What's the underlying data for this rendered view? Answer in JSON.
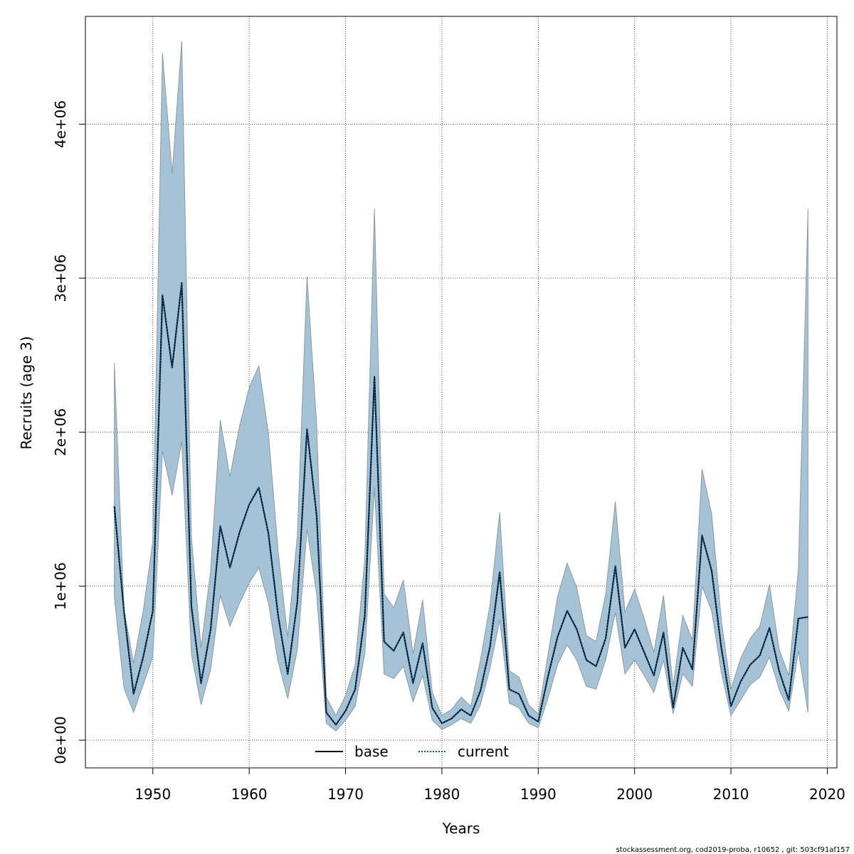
{
  "chart_data": {
    "type": "line",
    "title": "",
    "xlabel": "Years",
    "ylabel": "Recruits (age 3)",
    "xlim": [
      1943,
      2021
    ],
    "ylim": [
      -180000,
      4700000
    ],
    "x_ticks": [
      1950,
      1960,
      1970,
      1980,
      1990,
      2000,
      2010,
      2020
    ],
    "x_tick_labels": [
      "1950",
      "1960",
      "1970",
      "1980",
      "1990",
      "2000",
      "2010",
      "2020"
    ],
    "y_ticks": [
      0,
      1000000,
      2000000,
      3000000,
      4000000
    ],
    "y_tick_labels": [
      "0e+00",
      "1e+06",
      "2e+06",
      "3e+06",
      "4e+06"
    ],
    "grid": true,
    "legend_position": "bottom",
    "x": [
      1946,
      1947,
      1948,
      1949,
      1950,
      1951,
      1952,
      1953,
      1954,
      1955,
      1956,
      1957,
      1958,
      1959,
      1960,
      1961,
      1962,
      1963,
      1964,
      1965,
      1966,
      1967,
      1968,
      1969,
      1970,
      1971,
      1972,
      1973,
      1974,
      1975,
      1976,
      1977,
      1978,
      1979,
      1980,
      1981,
      1982,
      1983,
      1984,
      1985,
      1986,
      1987,
      1988,
      1989,
      1990,
      1991,
      1992,
      1993,
      1994,
      1995,
      1996,
      1997,
      1998,
      1999,
      2000,
      2001,
      2002,
      2003,
      2004,
      2005,
      2006,
      2007,
      2008,
      2009,
      2010,
      2011,
      2012,
      2013,
      2014,
      2015,
      2016,
      2017,
      2018
    ],
    "series": [
      {
        "name": "base",
        "style": "solid",
        "color": "#000000",
        "values": [
          1520000,
          840000,
          300000,
          540000,
          840000,
          2890000,
          2420000,
          2970000,
          870000,
          370000,
          720000,
          1390000,
          1120000,
          1350000,
          1530000,
          1640000,
          1340000,
          810000,
          430000,
          900000,
          2020000,
          1460000,
          180000,
          100000,
          190000,
          330000,
          810000,
          2360000,
          640000,
          580000,
          700000,
          370000,
          630000,
          210000,
          110000,
          140000,
          200000,
          160000,
          320000,
          610000,
          1090000,
          330000,
          300000,
          160000,
          120000,
          410000,
          670000,
          840000,
          720000,
          520000,
          480000,
          660000,
          1130000,
          600000,
          720000,
          570000,
          420000,
          700000,
          210000,
          600000,
          460000,
          1330000,
          1100000,
          600000,
          220000,
          380000,
          490000,
          550000,
          730000,
          450000,
          260000,
          790000,
          800000
        ]
      },
      {
        "name": "current",
        "style": "dotted",
        "color": "#00568a",
        "values": [
          1520000,
          840000,
          300000,
          540000,
          840000,
          2890000,
          2420000,
          2970000,
          870000,
          370000,
          720000,
          1390000,
          1120000,
          1350000,
          1530000,
          1640000,
          1340000,
          810000,
          430000,
          900000,
          2020000,
          1460000,
          180000,
          100000,
          190000,
          330000,
          810000,
          2360000,
          640000,
          580000,
          700000,
          370000,
          630000,
          210000,
          110000,
          140000,
          200000,
          160000,
          320000,
          610000,
          1090000,
          330000,
          300000,
          160000,
          120000,
          410000,
          670000,
          840000,
          720000,
          520000,
          480000,
          660000,
          1130000,
          600000,
          720000,
          570000,
          420000,
          700000,
          210000,
          600000,
          460000,
          1330000,
          1100000,
          600000,
          220000,
          380000,
          490000,
          550000,
          730000,
          450000,
          260000,
          790000,
          800000
        ]
      }
    ],
    "confidence_band": {
      "color": "#a5c3d5",
      "lower": [
        930000,
        340000,
        180000,
        360000,
        540000,
        1880000,
        1590000,
        1940000,
        560000,
        230000,
        460000,
        940000,
        740000,
        890000,
        1020000,
        1120000,
        890000,
        510000,
        270000,
        590000,
        1370000,
        950000,
        110000,
        60000,
        130000,
        220000,
        560000,
        1640000,
        430000,
        400000,
        480000,
        250000,
        420000,
        130000,
        70000,
        100000,
        140000,
        110000,
        230000,
        470000,
        780000,
        240000,
        210000,
        110000,
        80000,
        270000,
        490000,
        620000,
        520000,
        350000,
        330000,
        520000,
        830000,
        430000,
        520000,
        420000,
        310000,
        520000,
        170000,
        430000,
        350000,
        1000000,
        840000,
        440000,
        160000,
        260000,
        360000,
        410000,
        540000,
        330000,
        190000,
        580000,
        180000
      ],
      "upper": [
        2450000,
        850000,
        500000,
        840000,
        1290000,
        4460000,
        3680000,
        4540000,
        1320000,
        600000,
        1100000,
        2080000,
        1710000,
        2040000,
        2290000,
        2430000,
        1990000,
        1230000,
        670000,
        1330000,
        3010000,
        2050000,
        280000,
        160000,
        290000,
        490000,
        1180000,
        3450000,
        950000,
        860000,
        1040000,
        560000,
        910000,
        310000,
        160000,
        200000,
        280000,
        220000,
        520000,
        880000,
        1480000,
        450000,
        410000,
        230000,
        170000,
        550000,
        930000,
        1150000,
        990000,
        680000,
        640000,
        950000,
        1550000,
        830000,
        980000,
        790000,
        570000,
        940000,
        350000,
        810000,
        650000,
        1760000,
        1470000,
        780000,
        330000,
        530000,
        660000,
        740000,
        1010000,
        590000,
        420000,
        1110000,
        3450000
      ]
    },
    "footer": "stockassessment.org, cod2019-proba, r10652 , git: 503cf91af157"
  }
}
